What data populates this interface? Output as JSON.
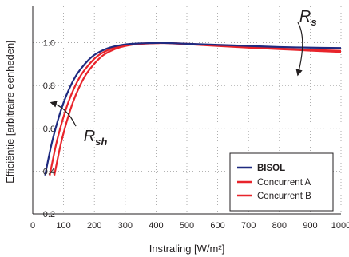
{
  "chart_data": {
    "type": "line",
    "xlabel": "Instraling [W/m²]",
    "ylabel": "Efficiëntie [arbitraire eenheden]",
    "xlim": [
      0,
      1000
    ],
    "ylim": [
      0.2,
      1.17
    ],
    "x_ticks": [
      0,
      100,
      200,
      300,
      400,
      500,
      600,
      700,
      800,
      900,
      1000
    ],
    "y_ticks": [
      0.2,
      0.4,
      0.6,
      0.8,
      1.0
    ],
    "x_tick_labels": [
      "0",
      "100",
      "200",
      "300",
      "400",
      "500",
      "600",
      "700",
      "800",
      "900",
      "1000"
    ],
    "y_tick_labels": [
      "0.2",
      "0.4",
      "0.6",
      "0.8",
      "1.0"
    ],
    "grid": "dotted",
    "legend_position": "bottom-right",
    "series": [
      {
        "name": "BISOL",
        "color": "#1f2a80",
        "x": [
          40,
          60,
          80,
          100,
          120,
          140,
          160,
          180,
          200,
          225,
          250,
          275,
          300,
          325,
          350,
          375,
          400,
          425,
          450,
          500,
          600,
          700,
          800,
          900,
          1000
        ],
        "y": [
          0.38,
          0.52,
          0.63,
          0.72,
          0.79,
          0.845,
          0.885,
          0.918,
          0.943,
          0.963,
          0.977,
          0.986,
          0.992,
          0.995,
          0.997,
          0.998,
          0.999,
          0.999,
          0.998,
          0.995,
          0.99,
          0.985,
          0.98,
          0.977,
          0.975
        ]
      },
      {
        "name": "Concurrent A",
        "color": "#e8242b",
        "x": [
          55,
          75,
          95,
          115,
          135,
          155,
          175,
          195,
          215,
          240,
          265,
          290,
          315,
          340,
          365,
          390,
          415,
          440,
          500,
          600,
          700,
          800,
          900,
          1000
        ],
        "y": [
          0.38,
          0.52,
          0.63,
          0.72,
          0.79,
          0.845,
          0.885,
          0.918,
          0.943,
          0.963,
          0.977,
          0.986,
          0.992,
          0.995,
          0.997,
          0.998,
          0.999,
          0.998,
          0.993,
          0.985,
          0.977,
          0.97,
          0.963,
          0.957
        ]
      },
      {
        "name": "Concurrent B",
        "color": "#e8242b",
        "x": [
          70,
          90,
          110,
          130,
          150,
          170,
          190,
          210,
          230,
          255,
          280,
          305,
          330,
          355,
          380,
          405,
          430,
          455,
          500,
          600,
          700,
          800,
          900,
          1000
        ],
        "y": [
          0.38,
          0.52,
          0.63,
          0.72,
          0.79,
          0.845,
          0.885,
          0.918,
          0.943,
          0.963,
          0.977,
          0.986,
          0.992,
          0.995,
          0.997,
          0.998,
          0.999,
          0.998,
          0.995,
          0.988,
          0.98,
          0.973,
          0.967,
          0.962
        ]
      }
    ],
    "annotations": [
      {
        "text": "R",
        "subscript": "s",
        "x": 865,
        "y": 1.1
      },
      {
        "text": "R",
        "subscript": "sh",
        "x": 165,
        "y": 0.54
      }
    ],
    "arrows": [
      {
        "name": "rs-arrow",
        "from": [
          860,
          1.095
        ],
        "via": [
          890,
          1.02
        ],
        "to": [
          860,
          0.85
        ]
      },
      {
        "name": "rsh-arrow",
        "from": [
          140,
          0.61
        ],
        "via": [
          110,
          0.7
        ],
        "to": [
          60,
          0.72
        ]
      }
    ]
  }
}
